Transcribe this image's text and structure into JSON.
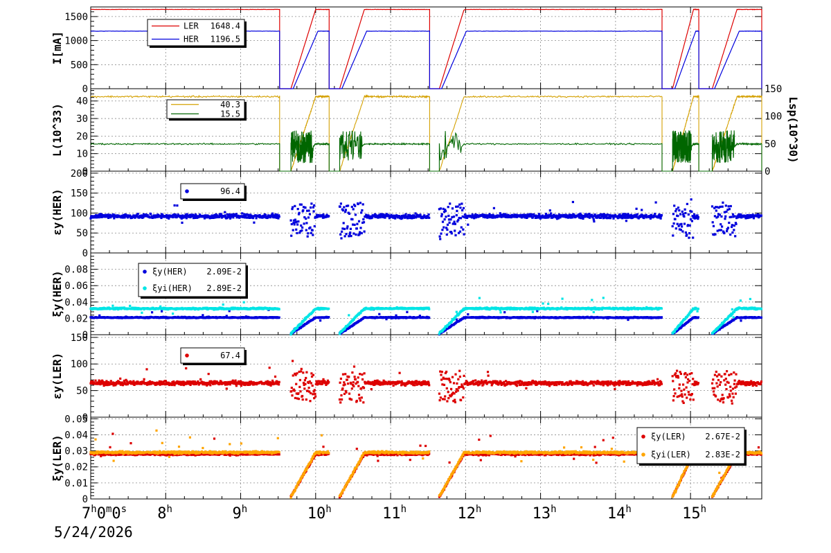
{
  "x_axis": {
    "start_hour": 7,
    "end_hour": 15.95,
    "first_tick_label": "7h0m0s",
    "tick_labels": [
      "8h",
      "9h",
      "10h",
      "11h",
      "12h",
      "13h",
      "14h",
      "15h"
    ],
    "date": "5/24/2026"
  },
  "colors": {
    "ler": "#dd0000",
    "her": "#0000dd",
    "lum_gold": "#d4a000",
    "lum_green": "#006600",
    "cyan": "#00e5e5",
    "orange": "#ffa500",
    "grid": "#888888"
  },
  "beam_timeline": {
    "note_segments": "hours where beams present",
    "fills": [
      {
        "start": 7.0,
        "end": 9.52,
        "ramp": false
      },
      {
        "start": 9.67,
        "end": 10.18,
        "ramp": true
      },
      {
        "start": 10.32,
        "end": 11.52,
        "ramp": true
      },
      {
        "start": 11.65,
        "end": 14.62,
        "ramp": true
      },
      {
        "start": 14.76,
        "end": 15.11,
        "ramp": true
      },
      {
        "start": 15.29,
        "end": 15.95,
        "ramp": true
      }
    ]
  },
  "chart_data": [
    {
      "type": "line",
      "ylabel": "I[mA]",
      "ylim": [
        0,
        1700
      ],
      "yticks": [
        0,
        500,
        1000,
        1500
      ],
      "legend": {
        "position": "top-left",
        "entries": [
          {
            "label": "LER",
            "value": "1648.4",
            "color": "#dd0000"
          },
          {
            "label": "HER",
            "value": "1196.5",
            "color": "#0000dd"
          }
        ]
      },
      "series": [
        {
          "name": "LER",
          "level": 1648.4,
          "color": "#dd0000"
        },
        {
          "name": "HER",
          "level": 1196.5,
          "color": "#0000dd"
        }
      ]
    },
    {
      "type": "line",
      "ylabel": "L(10^33)",
      "ylim": [
        0,
        47
      ],
      "yticks": [
        0,
        10,
        20,
        30,
        40
      ],
      "y2label": "Lsp(10^30)",
      "y2lim": [
        0,
        150
      ],
      "y2ticks": [
        0,
        50,
        100,
        150
      ],
      "legend": {
        "position": "top-left",
        "entries": [
          {
            "label": "",
            "value": "40.3",
            "color": "#d4a000"
          },
          {
            "label": "",
            "value": "15.5",
            "color": "#006600"
          }
        ]
      },
      "series": [
        {
          "level": 42.5,
          "color": "#d4a000"
        },
        {
          "level": 15.5,
          "color": "#006600"
        }
      ]
    },
    {
      "type": "scatter",
      "ylabel": "εy(HER)",
      "ylim": [
        0,
        205
      ],
      "yticks": [
        0,
        50,
        100,
        150,
        200
      ],
      "legend": {
        "position": "top-left",
        "entries": [
          {
            "label": "",
            "value": "96.4",
            "color": "#0000dd"
          }
        ]
      },
      "series": [
        {
          "level": 92,
          "color": "#0000dd"
        }
      ]
    },
    {
      "type": "scatter",
      "ylabel": "ξy(HER)",
      "ylim": [
        0,
        0.1
      ],
      "yticks": [
        0,
        0.02,
        0.04,
        0.06,
        0.08
      ],
      "ytick_labels": [
        "0",
        "0.02",
        "0.04",
        "0.06",
        "0.08"
      ],
      "legend": {
        "position": "top-left",
        "entries": [
          {
            "label": "ξy(HER)",
            "value": "2.09E-2",
            "color": "#0000dd"
          },
          {
            "label": "ξyi(HER)",
            "value": "2.89E-2",
            "color": "#00e5e5"
          }
        ]
      },
      "series": [
        {
          "level": 0.021,
          "color": "#0000dd"
        },
        {
          "level": 0.032,
          "color": "#00e5e5"
        }
      ]
    },
    {
      "type": "scatter",
      "ylabel": "εy(LER)",
      "ylim": [
        0,
        155
      ],
      "yticks": [
        0,
        50,
        100,
        150
      ],
      "legend": {
        "position": "top-left",
        "entries": [
          {
            "label": "",
            "value": "67.4",
            "color": "#dd0000"
          }
        ]
      },
      "series": [
        {
          "level": 64,
          "color": "#dd0000"
        }
      ]
    },
    {
      "type": "scatter",
      "ylabel": "ξy(LER)",
      "ylim": [
        0,
        0.051
      ],
      "yticks": [
        0,
        0.01,
        0.02,
        0.03,
        0.04,
        0.05
      ],
      "ytick_labels": [
        "0",
        "0.01",
        "0.02",
        "0.03",
        "0.04",
        "0.05"
      ],
      "legend": {
        "position": "top-right",
        "entries": [
          {
            "label": "ξy(LER)",
            "value": "2.67E-2",
            "color": "#dd0000"
          },
          {
            "label": "ξyi(LER)",
            "value": "2.83E-2",
            "color": "#ffa500"
          }
        ]
      },
      "series": [
        {
          "level": 0.028,
          "color": "#dd0000"
        },
        {
          "level": 0.029,
          "color": "#ffa500"
        }
      ]
    }
  ]
}
